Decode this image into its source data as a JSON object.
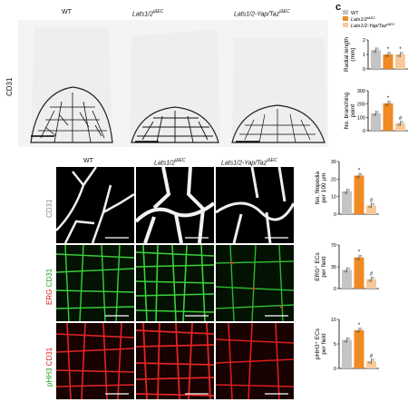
{
  "panel_letter": "c",
  "top_row": {
    "row_label": "CD31",
    "column_labels": [
      "WT",
      "Lats1/2",
      "Lats1/2-Yap/Taz"
    ],
    "column_superscripts": [
      "",
      "iΔEC",
      "iΔEC"
    ]
  },
  "bottom_grid": {
    "column_labels": [
      "WT",
      "Lats1/2",
      "Lats1/2-Yap/Taz"
    ],
    "column_superscripts": [
      "",
      "iΔEC",
      "iΔEC"
    ],
    "row_labels": [
      {
        "first": "CD31",
        "second": "",
        "first_color": "#888888",
        "second_color": "#888888"
      },
      {
        "first": "ERG",
        "second": " CD31",
        "first_color": "#d81b1b",
        "second_color": "#1fa01f"
      },
      {
        "first": "pHH3",
        "second": " CD31",
        "first_color": "#1fa01f",
        "second_color": "#d81b1b"
      }
    ]
  },
  "legend": {
    "entries": [
      {
        "label": "WT",
        "superscript": "",
        "color": "#c4c4c4"
      },
      {
        "label": "Lats1/2",
        "superscript": "iΔEC",
        "color": "#f08a24"
      },
      {
        "label": "Lats1/2-Yap/Taz",
        "superscript": "iΔEC",
        "color": "#f7c99a"
      }
    ]
  },
  "chart_data": [
    {
      "type": "bar",
      "ylabel_lines": [
        "Radial length",
        "(mm)"
      ],
      "ylim": [
        0,
        2
      ],
      "ticks": [
        "0",
        "1",
        "2"
      ],
      "categories": [
        "WT",
        "Lats1/2 iΔEC",
        "Lats1/2-Yap/Taz iΔEC"
      ],
      "values": [
        1.3,
        1.0,
        1.0
      ],
      "marks": [
        "",
        "*",
        "*"
      ]
    },
    {
      "type": "bar",
      "ylabel_lines": [
        "No. branching",
        "point"
      ],
      "ylim": [
        0,
        300
      ],
      "ticks": [
        "0",
        "100",
        "200",
        "300"
      ],
      "categories": [
        "WT",
        "Lats1/2 iΔEC",
        "Lats1/2-Yap/Taz iΔEC"
      ],
      "values": [
        130,
        205,
        55
      ],
      "marks": [
        "",
        "*",
        "#"
      ]
    },
    {
      "type": "bar",
      "ylabel_lines": [
        "No. filopodia",
        "per 100 µm"
      ],
      "ylim": [
        0,
        30
      ],
      "ticks": [
        "0",
        "10",
        "20",
        "30"
      ],
      "categories": [
        "WT",
        "Lats1/2 iΔEC",
        "Lats1/2-Yap/Taz iΔEC"
      ],
      "values": [
        13,
        22,
        5
      ],
      "marks": [
        "",
        "*",
        "#"
      ]
    },
    {
      "type": "bar",
      "ylabel_lines": [
        "ERG⁺ ECs",
        "per field"
      ],
      "ylim": [
        0,
        70
      ],
      "ticks": [
        "0",
        "35",
        "70"
      ],
      "categories": [
        "WT",
        "Lats1/2 iΔEC",
        "Lats1/2-Yap/Taz iΔEC"
      ],
      "values": [
        30,
        50,
        15
      ],
      "marks": [
        "",
        "*",
        "#"
      ]
    },
    {
      "type": "bar",
      "ylabel_lines": [
        "pHH3⁺ ECs",
        "per field"
      ],
      "ylim": [
        0,
        10
      ],
      "ticks": [
        "0",
        "5",
        "10"
      ],
      "categories": [
        "WT",
        "Lats1/2 iΔEC",
        "Lats1/2-Yap/Taz iΔEC"
      ],
      "values": [
        5.8,
        7.8,
        1.5
      ],
      "marks": [
        "",
        "*",
        "#"
      ]
    }
  ]
}
